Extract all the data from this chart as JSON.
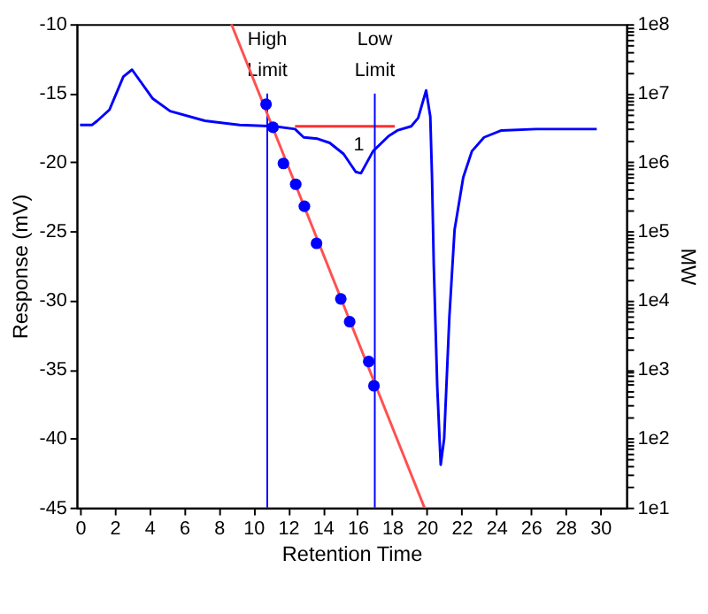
{
  "chart_data": {
    "type": "line",
    "xlabel": "Retention Time",
    "ylabel": "Response (mV)",
    "y2label": "MW",
    "xlim": [
      -0.2,
      31.5
    ],
    "xticks": [
      0,
      2,
      4,
      6,
      8,
      10,
      12,
      14,
      16,
      18,
      20,
      22,
      24,
      26,
      28,
      30
    ],
    "ylim": [
      -45,
      -10
    ],
    "yticks": [
      -45,
      -40,
      -35,
      -30,
      -25,
      -20,
      -15,
      -10
    ],
    "y2lim": [
      10,
      100000000
    ],
    "log": "y2",
    "y2ticks": [
      {
        "value": 10,
        "label": "1e1"
      },
      {
        "value": 20,
        "label": null
      },
      {
        "value": 30,
        "label": null
      },
      {
        "value": 40,
        "label": null
      },
      {
        "value": 50,
        "label": null
      },
      {
        "value": 60,
        "label": null
      },
      {
        "value": 70,
        "label": null
      },
      {
        "value": 80,
        "label": null
      },
      {
        "value": 90,
        "label": null
      },
      {
        "value": 100,
        "label": "1e2"
      },
      {
        "value": 200,
        "label": null
      },
      {
        "value": 300,
        "label": null
      },
      {
        "value": 400,
        "label": null
      },
      {
        "value": 500,
        "label": null
      },
      {
        "value": 600,
        "label": null
      },
      {
        "value": 700,
        "label": null
      },
      {
        "value": 800,
        "label": null
      },
      {
        "value": 900,
        "label": null
      },
      {
        "value": 1000,
        "label": "1e3"
      },
      {
        "value": 2000,
        "label": null
      },
      {
        "value": 3000,
        "label": null
      },
      {
        "value": 4000,
        "label": null
      },
      {
        "value": 5000,
        "label": null
      },
      {
        "value": 6000,
        "label": null
      },
      {
        "value": 7000,
        "label": null
      },
      {
        "value": 8000,
        "label": null
      },
      {
        "value": 9000,
        "label": null
      },
      {
        "value": 10000,
        "label": "1e4"
      },
      {
        "value": 20000,
        "label": null
      },
      {
        "value": 30000,
        "label": null
      },
      {
        "value": 40000,
        "label": null
      },
      {
        "value": 50000,
        "label": null
      },
      {
        "value": 60000,
        "label": null
      },
      {
        "value": 70000,
        "label": null
      },
      {
        "value": 80000,
        "label": null
      },
      {
        "value": 90000,
        "label": null
      },
      {
        "value": 100000,
        "label": "1e5"
      },
      {
        "value": 200000,
        "label": null
      },
      {
        "value": 300000,
        "label": null
      },
      {
        "value": 400000,
        "label": null
      },
      {
        "value": 500000,
        "label": null
      },
      {
        "value": 600000,
        "label": null
      },
      {
        "value": 700000,
        "label": null
      },
      {
        "value": 800000,
        "label": null
      },
      {
        "value": 900000,
        "label": null
      },
      {
        "value": 1000000,
        "label": "1e6"
      },
      {
        "value": 2000000,
        "label": null
      },
      {
        "value": 3000000,
        "label": null
      },
      {
        "value": 4000000,
        "label": null
      },
      {
        "value": 5000000,
        "label": null
      },
      {
        "value": 6000000,
        "label": null
      },
      {
        "value": 7000000,
        "label": null
      },
      {
        "value": 8000000,
        "label": null
      },
      {
        "value": 9000000,
        "label": null
      },
      {
        "value": 10000000,
        "label": "1e7"
      },
      {
        "value": 20000000,
        "label": null
      },
      {
        "value": 30000000,
        "label": null
      },
      {
        "value": 40000000,
        "label": null
      },
      {
        "value": 50000000,
        "label": null
      },
      {
        "value": 60000000,
        "label": null
      },
      {
        "value": 70000000,
        "label": null
      },
      {
        "value": 80000000,
        "label": null
      },
      {
        "value": 90000000,
        "label": null
      },
      {
        "value": 100000000,
        "label": "1e8"
      }
    ],
    "grid": false,
    "line_style": "solid",
    "series": [
      {
        "type": "line",
        "color": "#0000ff",
        "marker": "none",
        "x": [
          0,
          0.7,
          1.0,
          1.7,
          2.5,
          3.0,
          4.2,
          5.2,
          7.2,
          9.2,
          11.2,
          12.4,
          12.9,
          13.7,
          14.4,
          15.2,
          15.9,
          16.2,
          16.9,
          17.8,
          18.3,
          19.1,
          19.5,
          19.96,
          20.2,
          20.3,
          20.4,
          20.6,
          20.8,
          21.0,
          21.3,
          21.6,
          22.1,
          22.6,
          23.3,
          24.3,
          26.3,
          29.8
        ],
        "values": [
          -17.3,
          -17.3,
          -17.0,
          -16.2,
          -13.8,
          -13.3,
          -15.4,
          -16.3,
          -17.0,
          -17.3,
          -17.4,
          -17.6,
          -18.2,
          -18.3,
          -18.6,
          -19.4,
          -20.7,
          -20.8,
          -19.2,
          -18.1,
          -17.7,
          -17.4,
          -16.8,
          -14.8,
          -16.7,
          -21.1,
          -27.4,
          -36.2,
          -41.9,
          -40.0,
          -31.2,
          -24.9,
          -21.1,
          -19.2,
          -18.2,
          -17.7,
          -17.6,
          -17.6
        ]
      },
      {
        "type": "line",
        "axis": "y2",
        "color": "#ff5050",
        "marker": "none",
        "x": [
          8.73,
          19.86
        ],
        "values": [
          100000000,
          10
        ]
      },
      {
        "type": "scatter",
        "axis": "y2",
        "color": "#0000ff",
        "marker": "circle",
        "x": [
          10.73,
          11.13,
          11.73,
          12.44,
          12.94,
          13.64,
          15.04,
          15.55,
          16.65,
          16.95
        ],
        "values": [
          6900000,
          3200000,
          960000,
          480000,
          230000,
          67000,
          10500,
          4900,
          1300,
          580
        ]
      },
      {
        "type": "line",
        "color": "#ff3030",
        "marker": "none",
        "x": [
          12.4,
          18.15
        ],
        "values": [
          -17.4,
          -17.4
        ]
      }
    ],
    "ref_lines": [
      {
        "axis": "x",
        "value": 10.8,
        "label": "High Limit",
        "color": "#0000ff"
      },
      {
        "axis": "x",
        "value": 17.0,
        "label": "Low Limit",
        "color": "#0000ff"
      }
    ],
    "annotations": [
      "1"
    ]
  }
}
